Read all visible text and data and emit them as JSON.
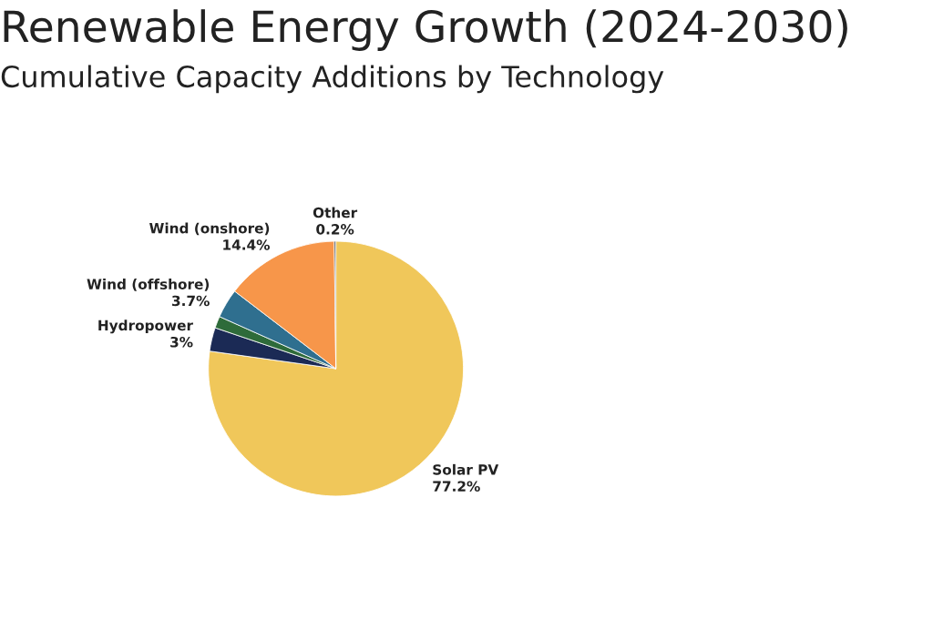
{
  "chart_data": {
    "type": "pie",
    "title": "Renewable Energy Growth (2024-2030)",
    "subtitle": "Cumulative Capacity Additions by Technology",
    "categories": [
      "Solar PV",
      "Hydropower",
      null,
      "Wind (offshore)",
      "Wind (onshore)",
      "Other"
    ],
    "values": [
      77.2,
      3,
      1.5,
      3.7,
      14.4,
      0.2
    ],
    "value_labels": [
      "77.2%",
      "3%",
      null,
      "3.7%",
      "14.4%",
      "0.2%"
    ],
    "colors": [
      "#f0c75a",
      "#1b2a55",
      "#2e6b3a",
      "#2f6f8f",
      "#f7964a",
      "#333333"
    ],
    "legend": false
  }
}
